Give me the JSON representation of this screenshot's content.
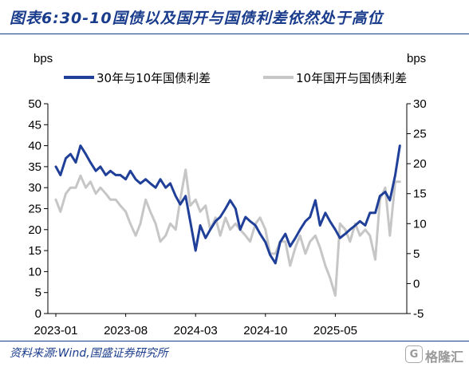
{
  "header": {
    "title": "图表6:30-10国债以及国开与国债利差依然处于高位"
  },
  "footer": {
    "source": "资料来源:Wind,国盛证券研究所",
    "watermark_text": "格隆汇",
    "watermark_icon": "G"
  },
  "colors": {
    "accent": "#1a3c8c",
    "series_30_10": "#1f3f99",
    "series_cdb": "#c6c6c6"
  },
  "chart_data": {
    "type": "line",
    "title": "",
    "ylabel_left": "bps",
    "ylabel_right": "bps",
    "x_ticks": [
      "2023-01",
      "2023-08",
      "2024-03",
      "2024-10",
      "2025-05"
    ],
    "ylim_left": [
      0,
      50
    ],
    "yticks_left": [
      "50",
      "45",
      "40",
      "35",
      "30",
      "25",
      "20",
      "15",
      "10",
      "5",
      "0"
    ],
    "ylim_right": [
      -5,
      30
    ],
    "yticks_right": [
      "30",
      "25",
      "20",
      "15",
      "10",
      "5",
      "0",
      "-5"
    ],
    "grid": false,
    "legend_position": "top",
    "series": [
      {
        "name": "30年与10年国债利差",
        "axis": "left",
        "x": [
          "2023-01",
          "2023-01-15",
          "2023-02",
          "2023-02-15",
          "2023-03",
          "2023-03-15",
          "2023-04",
          "2023-04-15",
          "2023-05",
          "2023-05-15",
          "2023-06",
          "2023-06-15",
          "2023-07",
          "2023-07-15",
          "2023-08",
          "2023-08-15",
          "2023-09",
          "2023-09-15",
          "2023-10",
          "2023-10-15",
          "2023-11",
          "2023-11-15",
          "2023-12",
          "2023-12-15",
          "2024-01",
          "2024-01-15",
          "2024-02",
          "2024-02-15",
          "2024-03",
          "2024-03-15",
          "2024-04",
          "2024-04-15",
          "2024-05",
          "2024-05-15",
          "2024-06",
          "2024-06-15",
          "2024-07",
          "2024-07-15",
          "2024-08",
          "2024-08-15",
          "2024-09",
          "2024-09-15",
          "2024-10",
          "2024-10-15",
          "2024-11",
          "2024-11-15",
          "2024-12",
          "2024-12-15",
          "2025-01",
          "2025-01-15",
          "2025-02",
          "2025-02-15",
          "2025-03",
          "2025-03-15",
          "2025-04",
          "2025-04-15",
          "2025-05",
          "2025-05-15",
          "2025-06",
          "2025-06-15",
          "2025-07",
          "2025-07-15",
          "2025-08",
          "2025-08-15",
          "2025-09",
          "2025-09-15",
          "2025-10",
          "2025-10-15",
          "2025-11",
          "2025-11-15"
        ],
        "values": [
          35,
          33,
          37,
          38,
          36,
          40,
          38,
          36,
          34,
          35,
          33,
          34,
          33,
          33,
          32,
          34,
          32,
          31,
          32,
          31,
          30,
          32,
          30,
          31,
          28,
          26,
          28,
          22,
          15,
          21,
          18,
          20,
          22,
          23,
          25,
          27,
          25,
          20,
          23,
          22,
          21,
          19,
          17,
          14,
          12,
          17,
          19,
          16,
          18,
          20,
          22,
          23,
          27,
          21,
          24,
          22,
          20,
          18,
          19,
          20,
          21,
          22,
          21,
          24,
          24,
          28,
          29,
          27,
          33,
          40
        ]
      },
      {
        "name": "10年国开与国债利差",
        "axis": "right",
        "x": [
          "2023-01",
          "2023-01-15",
          "2023-02",
          "2023-02-15",
          "2023-03",
          "2023-03-15",
          "2023-04",
          "2023-04-15",
          "2023-05",
          "2023-05-15",
          "2023-06",
          "2023-06-15",
          "2023-07",
          "2023-07-15",
          "2023-08",
          "2023-08-15",
          "2023-09",
          "2023-09-15",
          "2023-10",
          "2023-10-15",
          "2023-11",
          "2023-11-15",
          "2023-12",
          "2023-12-15",
          "2024-01",
          "2024-01-15",
          "2024-02",
          "2024-02-15",
          "2024-03",
          "2024-03-15",
          "2024-04",
          "2024-04-15",
          "2024-05",
          "2024-05-15",
          "2024-06",
          "2024-06-15",
          "2024-07",
          "2024-07-15",
          "2024-08",
          "2024-08-15",
          "2024-09",
          "2024-09-15",
          "2024-10",
          "2024-10-15",
          "2024-11",
          "2024-11-15",
          "2024-12",
          "2024-12-15",
          "2025-01",
          "2025-01-15",
          "2025-02",
          "2025-02-15",
          "2025-03",
          "2025-03-15",
          "2025-04",
          "2025-04-15",
          "2025-05",
          "2025-05-15",
          "2025-06",
          "2025-06-15",
          "2025-07",
          "2025-07-15",
          "2025-08",
          "2025-08-15",
          "2025-09",
          "2025-09-15",
          "2025-10",
          "2025-10-15",
          "2025-11",
          "2025-11-15"
        ],
        "values": [
          14,
          12,
          15,
          16,
          16,
          18,
          16,
          17,
          15,
          16,
          15,
          14,
          14,
          13,
          12,
          10,
          8,
          10,
          14,
          12,
          10,
          7,
          8,
          10,
          9,
          14,
          19,
          13,
          14,
          12,
          13,
          9,
          11,
          8,
          11,
          9,
          10,
          9,
          8,
          7,
          10,
          11,
          9,
          5,
          5,
          7,
          7,
          3,
          6,
          8,
          5,
          7,
          8,
          6,
          3,
          1,
          -2,
          10,
          9,
          7,
          10,
          8,
          9,
          8,
          4,
          14,
          16,
          8,
          17,
          17
        ]
      }
    ]
  }
}
